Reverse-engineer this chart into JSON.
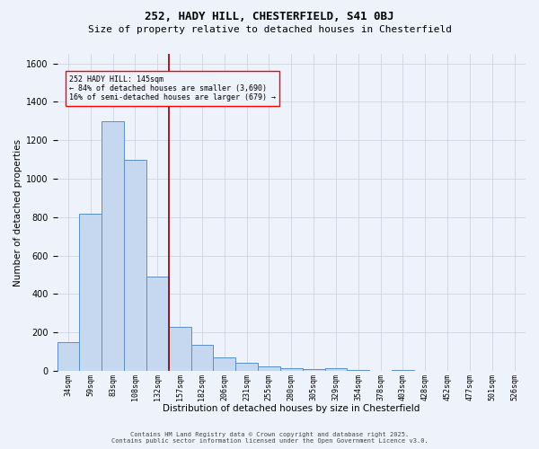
{
  "title_line1": "252, HADY HILL, CHESTERFIELD, S41 0BJ",
  "title_line2": "Size of property relative to detached houses in Chesterfield",
  "xlabel": "Distribution of detached houses by size in Chesterfield",
  "ylabel": "Number of detached properties",
  "footer_line1": "Contains HM Land Registry data © Crown copyright and database right 2025.",
  "footer_line2": "Contains public sector information licensed under the Open Government Licence v3.0.",
  "annotation_title": "252 HADY HILL: 145sqm",
  "annotation_line1": "← 84% of detached houses are smaller (3,690)",
  "annotation_line2": "16% of semi-detached houses are larger (679) →",
  "bar_labels": [
    "34sqm",
    "59sqm",
    "83sqm",
    "108sqm",
    "132sqm",
    "157sqm",
    "182sqm",
    "206sqm",
    "231sqm",
    "255sqm",
    "280sqm",
    "305sqm",
    "329sqm",
    "354sqm",
    "378sqm",
    "403sqm",
    "428sqm",
    "452sqm",
    "477sqm",
    "501sqm",
    "526sqm"
  ],
  "bar_values": [
    150,
    820,
    1300,
    1100,
    490,
    230,
    135,
    70,
    42,
    25,
    15,
    8,
    12,
    3,
    0,
    5,
    0,
    0,
    0,
    0,
    0
  ],
  "bar_color": "#c5d8f0",
  "bar_edge_color": "#5b8fc9",
  "vline_x_index": 4.52,
  "vline_color": "#8b0000",
  "bg_color": "#eef2fa",
  "grid_color": "#c8cfe0",
  "ylim": [
    0,
    1650
  ],
  "yticks": [
    0,
    200,
    400,
    600,
    800,
    1000,
    1200,
    1400,
    1600
  ],
  "title1_fontsize": 9,
  "title2_fontsize": 8,
  "xlabel_fontsize": 7.5,
  "ylabel_fontsize": 7.5,
  "xtick_fontsize": 6,
  "ytick_fontsize": 7,
  "annot_fontsize": 6,
  "footer_fontsize": 5
}
